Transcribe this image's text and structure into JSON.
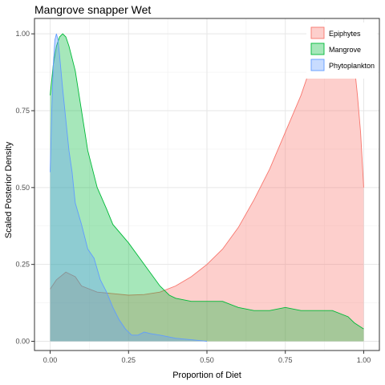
{
  "chart_data": {
    "type": "area",
    "title": "Mangrove snapper Wet",
    "xlabel": "Proportion of Diet",
    "ylabel": "Scaled Posterior Density",
    "xlim": [
      -0.05,
      1.05
    ],
    "ylim": [
      -0.03,
      1.05
    ],
    "x_ticks": [
      0.0,
      0.25,
      0.5,
      0.75,
      1.0
    ],
    "x_tick_labels": [
      "0.00",
      "0.25",
      "0.50",
      "0.75",
      "1.00"
    ],
    "y_ticks": [
      0.0,
      0.25,
      0.5,
      0.75,
      1.0
    ],
    "y_tick_labels": [
      "0.00",
      "0.25",
      "0.50",
      "0.75",
      "1.00"
    ],
    "grid": true,
    "legend_position": "top-right",
    "series": [
      {
        "name": "Epiphytes",
        "color": "#F8766D",
        "fill": "#F8766D",
        "x": [
          0.0,
          0.02,
          0.05,
          0.08,
          0.1,
          0.15,
          0.2,
          0.25,
          0.3,
          0.35,
          0.4,
          0.45,
          0.5,
          0.55,
          0.6,
          0.65,
          0.7,
          0.75,
          0.8,
          0.82,
          0.85,
          0.88,
          0.9,
          0.93,
          0.95,
          0.97,
          0.98,
          0.99,
          1.0
        ],
        "y": [
          0.17,
          0.2,
          0.225,
          0.21,
          0.18,
          0.16,
          0.155,
          0.15,
          0.152,
          0.16,
          0.18,
          0.21,
          0.25,
          0.3,
          0.37,
          0.46,
          0.56,
          0.68,
          0.8,
          0.86,
          0.91,
          0.95,
          0.97,
          0.98,
          0.97,
          0.9,
          0.8,
          0.68,
          0.5
        ]
      },
      {
        "name": "Mangrove",
        "color": "#00BA38",
        "fill": "#00BA38",
        "x": [
          0.0,
          0.01,
          0.02,
          0.03,
          0.04,
          0.05,
          0.06,
          0.08,
          0.1,
          0.12,
          0.15,
          0.18,
          0.2,
          0.25,
          0.3,
          0.35,
          0.38,
          0.4,
          0.45,
          0.5,
          0.55,
          0.6,
          0.65,
          0.7,
          0.75,
          0.8,
          0.85,
          0.9,
          0.95,
          0.97,
          1.0
        ],
        "y": [
          0.8,
          0.9,
          0.96,
          0.99,
          1.0,
          0.99,
          0.96,
          0.88,
          0.75,
          0.62,
          0.5,
          0.43,
          0.38,
          0.32,
          0.25,
          0.18,
          0.15,
          0.14,
          0.13,
          0.13,
          0.13,
          0.11,
          0.1,
          0.1,
          0.11,
          0.1,
          0.1,
          0.1,
          0.08,
          0.06,
          0.04
        ]
      },
      {
        "name": "Phytoplankton",
        "color": "#619CFF",
        "fill": "#619CFF",
        "x": [
          0.0,
          0.005,
          0.01,
          0.015,
          0.02,
          0.025,
          0.03,
          0.04,
          0.05,
          0.06,
          0.07,
          0.08,
          0.1,
          0.12,
          0.14,
          0.16,
          0.18,
          0.2,
          0.22,
          0.24,
          0.26,
          0.28,
          0.3,
          0.32,
          0.35,
          0.4,
          0.45,
          0.5
        ],
        "y": [
          0.55,
          0.75,
          0.9,
          0.98,
          1.0,
          0.98,
          0.93,
          0.82,
          0.72,
          0.62,
          0.55,
          0.45,
          0.38,
          0.3,
          0.27,
          0.2,
          0.16,
          0.11,
          0.07,
          0.04,
          0.02,
          0.02,
          0.03,
          0.025,
          0.02,
          0.01,
          0.005,
          0.0
        ]
      }
    ]
  }
}
